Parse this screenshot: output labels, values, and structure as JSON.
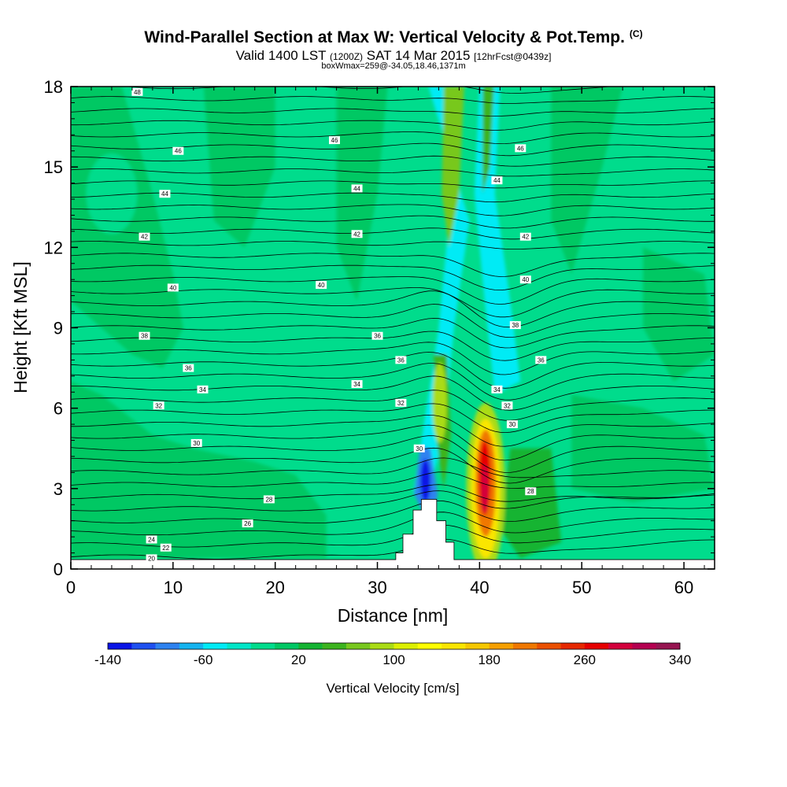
{
  "header": {
    "title": "Wind-Parallel Section at Max W: Vertical Velocity & Pot.Temp.",
    "title_mark": "(C)",
    "subtitle_main": "Valid 1400 LST",
    "subtitle_utc": "(1200Z)",
    "subtitle_date": "SAT 14 Mar 2015",
    "subtitle_fcst": "[12hrFcst@0439z]",
    "box_note": "boxWmax=259@-34.05,18.46,1371m"
  },
  "chart_data": {
    "type": "heatmap",
    "title": "Wind-Parallel Section at Max W: Vertical Velocity & Pot.Temp.",
    "xlabel": "Distance [nm]",
    "ylabel": "Height [Kft MSL]",
    "xlim": [
      0,
      63
    ],
    "ylim": [
      0,
      18
    ],
    "xticks": [
      0,
      10,
      20,
      30,
      40,
      50,
      60
    ],
    "yticks": [
      0,
      3,
      6,
      9,
      12,
      15,
      18
    ],
    "grid": false,
    "colorbar": {
      "label": "Vertical Velocity [cm/s]",
      "orientation": "horizontal",
      "tick_labels": [
        "-140",
        "-60",
        "20",
        "100",
        "180",
        "260",
        "340"
      ],
      "colors": [
        "#0a14e6",
        "#1e50f0",
        "#2d82f0",
        "#14b4f0",
        "#00ebf5",
        "#00e6c8",
        "#00dc8c",
        "#00c864",
        "#14b432",
        "#3cb41e",
        "#78c81e",
        "#aadc14",
        "#dcf000",
        "#ffff00",
        "#fae600",
        "#f5c800",
        "#f5a000",
        "#f07800",
        "#eb5000",
        "#e62800",
        "#e60000",
        "#d2003c",
        "#b40050",
        "#961450"
      ]
    },
    "contour_labels": [
      {
        "text": "48",
        "x": 6.5,
        "y": 17.8
      },
      {
        "text": "46",
        "x": 10.5,
        "y": 15.6
      },
      {
        "text": "46",
        "x": 25.8,
        "y": 16.0
      },
      {
        "text": "44",
        "x": 9.2,
        "y": 14.0
      },
      {
        "text": "44",
        "x": 28.0,
        "y": 14.2
      },
      {
        "text": "42",
        "x": 7.2,
        "y": 12.4
      },
      {
        "text": "42",
        "x": 28.0,
        "y": 12.5
      },
      {
        "text": "40",
        "x": 10.0,
        "y": 10.5
      },
      {
        "text": "40",
        "x": 24.5,
        "y": 10.6
      },
      {
        "text": "38",
        "x": 7.2,
        "y": 8.7
      },
      {
        "text": "36",
        "x": 30.0,
        "y": 8.7
      },
      {
        "text": "36",
        "x": 11.5,
        "y": 7.5
      },
      {
        "text": "34",
        "x": 12.9,
        "y": 6.7
      },
      {
        "text": "34",
        "x": 28.0,
        "y": 6.9
      },
      {
        "text": "36",
        "x": 32.3,
        "y": 7.8
      },
      {
        "text": "32",
        "x": 8.6,
        "y": 6.1
      },
      {
        "text": "32",
        "x": 32.3,
        "y": 6.2
      },
      {
        "text": "30",
        "x": 12.3,
        "y": 4.7
      },
      {
        "text": "30",
        "x": 34.1,
        "y": 4.5
      },
      {
        "text": "28",
        "x": 19.4,
        "y": 2.6
      },
      {
        "text": "26",
        "x": 17.3,
        "y": 1.7
      },
      {
        "text": "24",
        "x": 7.9,
        "y": 1.1
      },
      {
        "text": "22",
        "x": 9.3,
        "y": 0.8
      },
      {
        "text": "20",
        "x": 7.9,
        "y": 0.4
      },
      {
        "text": "46",
        "x": 44.0,
        "y": 15.7
      },
      {
        "text": "44",
        "x": 41.7,
        "y": 14.5
      },
      {
        "text": "42",
        "x": 44.5,
        "y": 12.4
      },
      {
        "text": "40",
        "x": 44.5,
        "y": 10.8
      },
      {
        "text": "38",
        "x": 43.5,
        "y": 9.1
      },
      {
        "text": "36",
        "x": 46.0,
        "y": 7.8
      },
      {
        "text": "34",
        "x": 41.7,
        "y": 6.7
      },
      {
        "text": "32",
        "x": 42.7,
        "y": 6.1
      },
      {
        "text": "30",
        "x": 43.2,
        "y": 5.4
      },
      {
        "text": "28",
        "x": 45.0,
        "y": 2.9
      }
    ]
  }
}
